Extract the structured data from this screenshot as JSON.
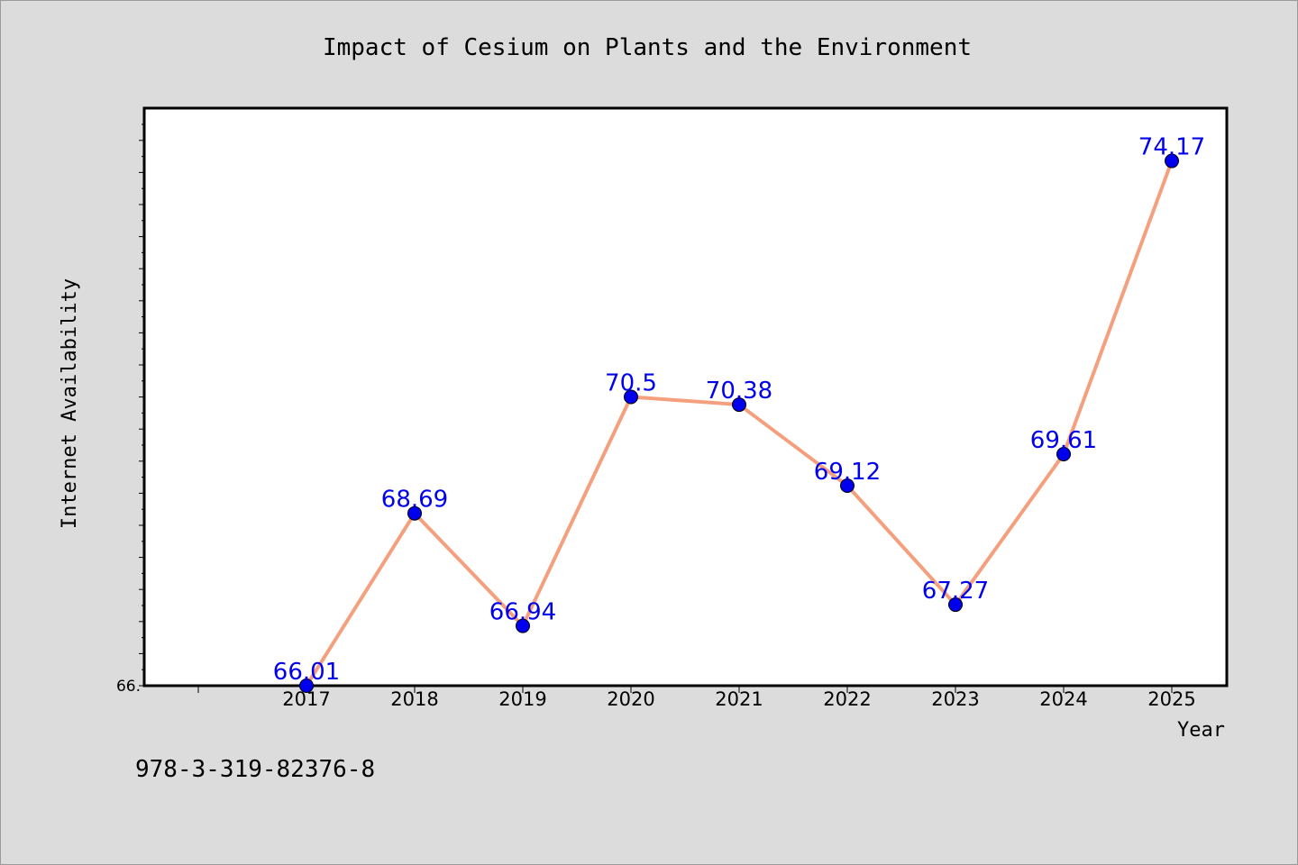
{
  "chart_data": {
    "type": "line",
    "title": "Impact of Cesium on Plants and the Environment",
    "xlabel": "Year",
    "ylabel": "Internet Availability",
    "categories": [
      "2017",
      "2018",
      "2019",
      "2020",
      "2021",
      "2022",
      "2023",
      "2024",
      "2025"
    ],
    "values": [
      66.01,
      68.69,
      66.94,
      70.5,
      70.38,
      69.12,
      67.27,
      69.61,
      74.17
    ],
    "value_labels": [
      "66.01",
      "68.69",
      "66.94",
      "70.5",
      "70.38",
      "69.12",
      "67.27",
      "69.61",
      "74.17"
    ],
    "ytick_label": "66.",
    "ylim": [
      66.01,
      74.99
    ],
    "grid": false,
    "colors": {
      "line": "#f4a07e",
      "marker": "#0000ee",
      "label": "#0000ee",
      "background": "#dcdcdc",
      "plot_background": "#ffffff"
    }
  },
  "footer": {
    "isbn": "978-3-319-82376-8"
  }
}
